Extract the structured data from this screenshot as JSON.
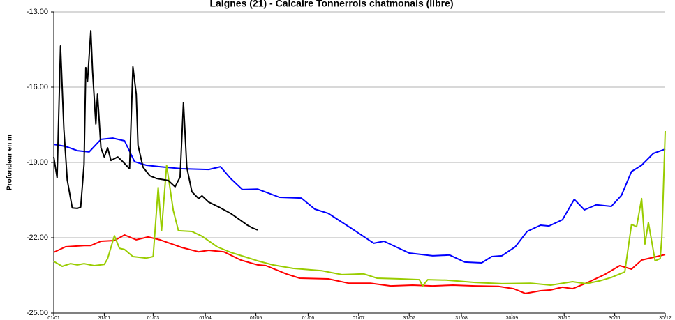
{
  "chart_data": {
    "type": "line",
    "title": "Laignes (21) - Calcaire Tonnerrois chatmonais (libre)",
    "y_label": "Profondeur en m",
    "xlim": [
      0,
      363
    ],
    "ylim": [
      -25,
      -13
    ],
    "yticks": [
      {
        "value": -25,
        "label": "-25.00"
      },
      {
        "value": -22,
        "label": "-22.00"
      },
      {
        "value": -19,
        "label": "-19.00"
      },
      {
        "value": -16,
        "label": "-16.00"
      },
      {
        "value": -13,
        "label": "-13.00"
      }
    ],
    "xticks": [
      {
        "value": 0,
        "label": "01/01"
      },
      {
        "value": 30,
        "label": "31/01"
      },
      {
        "value": 59,
        "label": "01/03"
      },
      {
        "value": 90,
        "label": "01/04"
      },
      {
        "value": 120,
        "label": "01/05"
      },
      {
        "value": 151,
        "label": "01/06"
      },
      {
        "value": 181,
        "label": "01/07"
      },
      {
        "value": 211,
        "label": "31/07"
      },
      {
        "value": 242,
        "label": "31/08"
      },
      {
        "value": 272,
        "label": "30/09"
      },
      {
        "value": 303,
        "label": "31/10"
      },
      {
        "value": 333,
        "label": "30/11"
      },
      {
        "value": 363,
        "label": "30/12"
      }
    ],
    "grid": true,
    "series": [
      {
        "color": "#0000ff",
        "x": [
          0,
          7,
          14,
          21,
          28,
          35,
          42,
          48,
          55,
          63,
          76,
          92,
          99,
          105,
          112,
          121,
          134,
          147,
          155,
          163,
          177,
          190,
          196,
          211,
          225,
          235,
          244,
          254,
          260,
          266,
          274,
          281,
          289,
          294,
          302,
          309,
          315,
          322,
          331,
          337,
          343,
          349,
          356,
          363
        ],
        "values": [
          -18.28,
          -18.36,
          -18.53,
          -18.58,
          -18.08,
          -18.03,
          -18.14,
          -18.97,
          -19.11,
          -19.17,
          -19.25,
          -19.28,
          -19.17,
          -19.64,
          -20.08,
          -20.06,
          -20.39,
          -20.42,
          -20.86,
          -21.03,
          -21.64,
          -22.22,
          -22.14,
          -22.61,
          -22.72,
          -22.69,
          -22.97,
          -23.0,
          -22.75,
          -22.72,
          -22.36,
          -21.75,
          -21.5,
          -21.53,
          -21.28,
          -20.47,
          -20.89,
          -20.69,
          -20.75,
          -20.31,
          -19.36,
          -19.11,
          -18.64,
          -18.47
        ]
      },
      {
        "color": "#ff0000",
        "x": [
          0,
          7,
          18,
          22,
          28,
          36,
          42,
          49,
          56,
          63,
          76,
          86,
          92,
          101,
          111,
          121,
          126,
          138,
          146,
          163,
          175,
          188,
          200,
          213,
          225,
          237,
          250,
          264,
          273,
          280,
          289,
          295,
          302,
          308,
          316,
          327,
          336,
          343,
          349,
          356,
          363
        ],
        "values": [
          -22.58,
          -22.36,
          -22.31,
          -22.31,
          -22.14,
          -22.11,
          -21.89,
          -22.08,
          -21.97,
          -22.08,
          -22.39,
          -22.56,
          -22.5,
          -22.56,
          -22.89,
          -23.08,
          -23.11,
          -23.44,
          -23.61,
          -23.64,
          -23.81,
          -23.81,
          -23.92,
          -23.89,
          -23.92,
          -23.89,
          -23.92,
          -23.94,
          -24.03,
          -24.22,
          -24.11,
          -24.08,
          -23.97,
          -24.03,
          -23.81,
          -23.47,
          -23.11,
          -23.25,
          -22.89,
          -22.78,
          -22.67
        ]
      },
      {
        "color": "#99cc00",
        "x": [
          0,
          5,
          10,
          14,
          18,
          24,
          30,
          32,
          36,
          39,
          42,
          47,
          51,
          55,
          59,
          62,
          64,
          67,
          71,
          74,
          82,
          88,
          97,
          105,
          113,
          121,
          130,
          142,
          159,
          171,
          184,
          192,
          206,
          217,
          219,
          222,
          233,
          250,
          266,
          283,
          295,
          308,
          316,
          324,
          331,
          339,
          343,
          346,
          349,
          351,
          353,
          357,
          360,
          361,
          363
        ],
        "values": [
          -22.94,
          -23.14,
          -23.03,
          -23.08,
          -23.03,
          -23.11,
          -23.06,
          -22.83,
          -21.92,
          -22.42,
          -22.47,
          -22.75,
          -22.78,
          -22.81,
          -22.75,
          -20.0,
          -21.72,
          -19.11,
          -20.92,
          -21.72,
          -21.75,
          -21.94,
          -22.36,
          -22.58,
          -22.75,
          -22.92,
          -23.08,
          -23.22,
          -23.31,
          -23.47,
          -23.44,
          -23.61,
          -23.64,
          -23.67,
          -23.92,
          -23.67,
          -23.69,
          -23.78,
          -23.83,
          -23.81,
          -23.89,
          -23.75,
          -23.83,
          -23.72,
          -23.58,
          -23.36,
          -21.47,
          -21.56,
          -20.44,
          -22.25,
          -21.39,
          -22.92,
          -22.83,
          -21.97,
          -17.75
        ]
      },
      {
        "color": "#000000",
        "x": [
          0,
          2,
          4,
          6,
          8,
          11,
          14,
          16,
          18,
          19,
          20,
          22,
          23,
          25,
          26,
          28,
          30,
          32,
          34,
          38,
          41,
          45,
          47,
          49,
          50,
          53,
          57,
          61,
          68,
          72,
          75,
          77,
          79,
          82,
          86,
          88,
          92,
          99,
          105,
          111,
          115,
          118,
          121
        ],
        "values": [
          -18.78,
          -19.61,
          -14.36,
          -17.67,
          -19.69,
          -20.81,
          -20.83,
          -20.78,
          -19.08,
          -15.22,
          -15.78,
          -13.75,
          -15.31,
          -17.47,
          -16.28,
          -18.42,
          -18.78,
          -18.42,
          -18.92,
          -18.78,
          -18.97,
          -19.25,
          -15.19,
          -16.28,
          -18.31,
          -19.19,
          -19.53,
          -19.64,
          -19.72,
          -19.97,
          -19.58,
          -16.61,
          -19.19,
          -20.17,
          -20.44,
          -20.33,
          -20.58,
          -20.81,
          -21.03,
          -21.31,
          -21.5,
          -21.61,
          -21.69
        ]
      }
    ]
  }
}
